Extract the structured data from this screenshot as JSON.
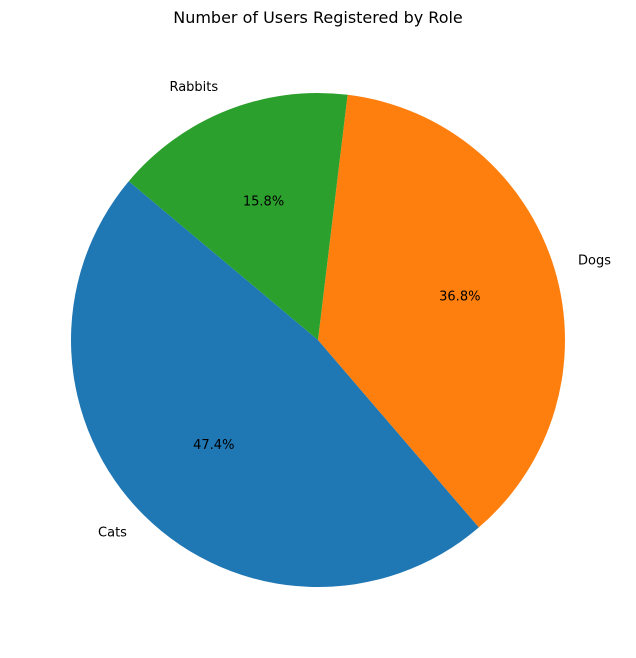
{
  "chart_data": {
    "type": "pie",
    "title": "Number of Users Registered by Role",
    "slices": [
      {
        "label": "Cats",
        "value": 47.4,
        "pct_label": "47.4%",
        "color": "#1f77b4"
      },
      {
        "label": "Dogs",
        "value": 36.8,
        "pct_label": "36.8%",
        "color": "#ff7f0e"
      },
      {
        "label": "Rabbits",
        "value": 15.8,
        "pct_label": "15.8%",
        "color": "#2ca02c"
      }
    ],
    "start_angle_deg": 140,
    "direction": "counterclockwise"
  }
}
